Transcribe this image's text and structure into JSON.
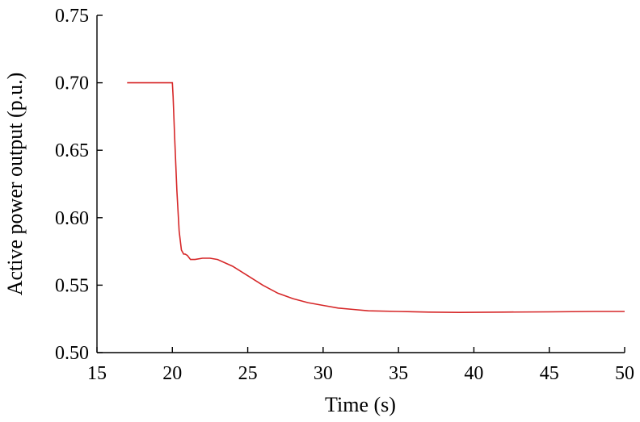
{
  "chart_data": {
    "type": "line",
    "title": "",
    "xlabel": "Time (s)",
    "ylabel": "Active power output (p.u.)",
    "xlim": [
      15,
      50
    ],
    "ylim": [
      0.5,
      0.75
    ],
    "xticks": [
      "15",
      "20",
      "25",
      "30",
      "35",
      "40",
      "45",
      "50"
    ],
    "yticks": [
      "0.50",
      "0.55",
      "0.60",
      "0.65",
      "0.70",
      "0.75"
    ],
    "grid": false,
    "series_color": "#d62728",
    "series": [
      {
        "x": [
          17,
          20,
          20.05,
          20.15,
          20.3,
          20.45,
          20.6,
          20.75,
          20.85,
          21.0,
          21.2,
          21.5,
          22.0,
          22.5,
          23.0,
          24.0,
          25.0,
          26.0,
          27.0,
          28.0,
          29.0,
          30.0,
          31.0,
          32.0,
          33.0,
          35.0,
          37.0,
          39.0,
          42.0,
          45.0,
          48.0,
          50.0
        ],
        "y": [
          0.7,
          0.7,
          0.69,
          0.66,
          0.62,
          0.59,
          0.576,
          0.573,
          0.573,
          0.572,
          0.569,
          0.569,
          0.57,
          0.57,
          0.569,
          0.564,
          0.557,
          0.55,
          0.544,
          0.54,
          0.537,
          0.535,
          0.533,
          0.532,
          0.531,
          0.5305,
          0.53,
          0.5298,
          0.53,
          0.5302,
          0.5305,
          0.5305
        ]
      }
    ]
  }
}
